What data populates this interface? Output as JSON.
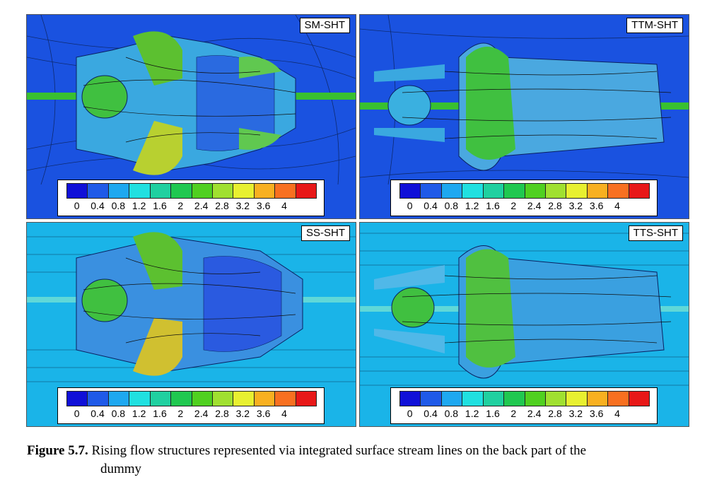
{
  "panels": [
    {
      "id": "sm",
      "label": "SM-SHT",
      "background": "#1a52e0"
    },
    {
      "id": "ttm",
      "label": "TTM-SHT",
      "background": "#1a52e0"
    },
    {
      "id": "ss",
      "label": "SS-SHT",
      "background": "#1ab4e8"
    },
    {
      "id": "tts",
      "label": "TTS-SHT",
      "background": "#1ab4e8"
    }
  ],
  "legend": {
    "ticks": [
      "0",
      "0.4",
      "0.8",
      "1.2",
      "1.6",
      "2",
      "2.4",
      "2.8",
      "3.2",
      "3.6",
      "4"
    ],
    "colors": [
      "#1010d8",
      "#1f5ae8",
      "#1ea8f0",
      "#20e0e0",
      "#20d0a0",
      "#20c850",
      "#50d020",
      "#a0e030",
      "#e8f030",
      "#f8b020",
      "#f87020",
      "#e81818"
    ]
  },
  "caption": {
    "label": "Figure 5.7.",
    "line1": "Rising flow structures represented via integrated surface stream lines on the back part of the",
    "line2": "dummy"
  }
}
